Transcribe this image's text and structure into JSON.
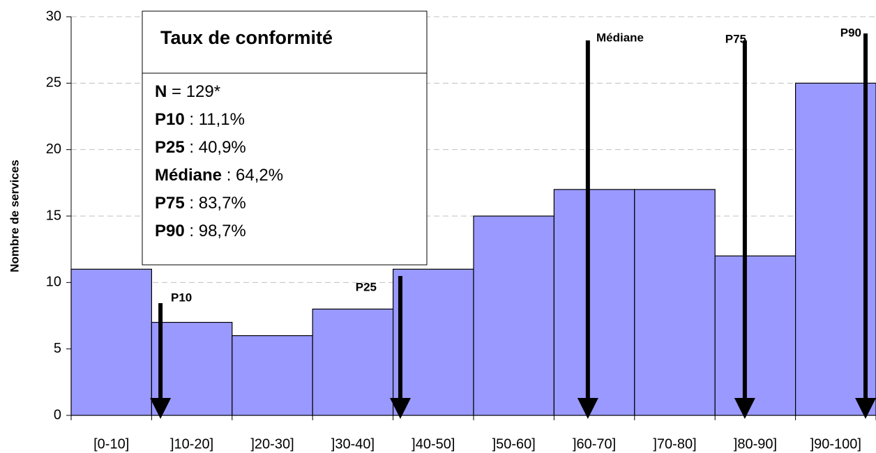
{
  "chart_data": {
    "type": "bar",
    "categories": [
      "[0-10]",
      "]10-20]",
      "]20-30]",
      "]30-40]",
      "]40-50]",
      "]50-60]",
      "]60-70]",
      "]70-80]",
      "]80-90]",
      "]90-100]"
    ],
    "values": [
      11,
      7,
      6,
      8,
      11,
      15,
      17,
      17,
      12,
      25
    ],
    "color": "#9999ff",
    "xlim": [
      0,
      100
    ],
    "ylim": [
      0,
      30
    ],
    "yticks": [
      0,
      5,
      10,
      15,
      20,
      25,
      30
    ],
    "grid": true,
    "y_label": "Nombre de services",
    "box_title": "Taux de conformité",
    "n_label": "N",
    "n_separator": " = ",
    "n_value_label": "129*",
    "annotations": [
      {
        "label": "P10",
        "separator": " : ",
        "value": 11.1,
        "value_label": "11,1%"
      },
      {
        "label": "P25",
        "separator": " : ",
        "value": 40.9,
        "value_label": "40,9%"
      },
      {
        "label": "Médiane",
        "separator": " : ",
        "value": 64.2,
        "value_label": "64,2%"
      },
      {
        "label": "P75",
        "separator": " : ",
        "value": 83.7,
        "value_label": "83,7%"
      },
      {
        "label": "P90",
        "separator": " : ",
        "value": 98.7,
        "value_label": "98,7%"
      }
    ]
  }
}
